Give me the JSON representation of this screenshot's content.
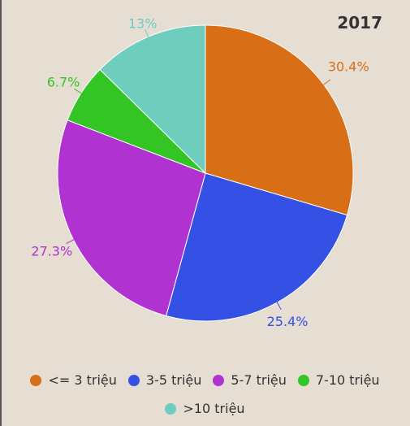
{
  "chart_data": {
    "type": "pie",
    "title": "2017",
    "categories": [
      "<= 3 triệu",
      "3-5 triệu",
      "5-7 triệu",
      "7-10 triệu",
      ">10 triệu"
    ],
    "values": [
      30.4,
      25.4,
      27.3,
      6.7,
      13
    ],
    "labels": [
      "30.4%",
      "25.4%",
      "27.3%",
      "6.7%",
      "13%"
    ],
    "colors": [
      "#d86f17",
      "#3550e5",
      "#b033d1",
      "#33c524",
      "#6ecdbd"
    ],
    "legend_position": "bottom",
    "start_angle": "12 o'clock, clockwise"
  }
}
